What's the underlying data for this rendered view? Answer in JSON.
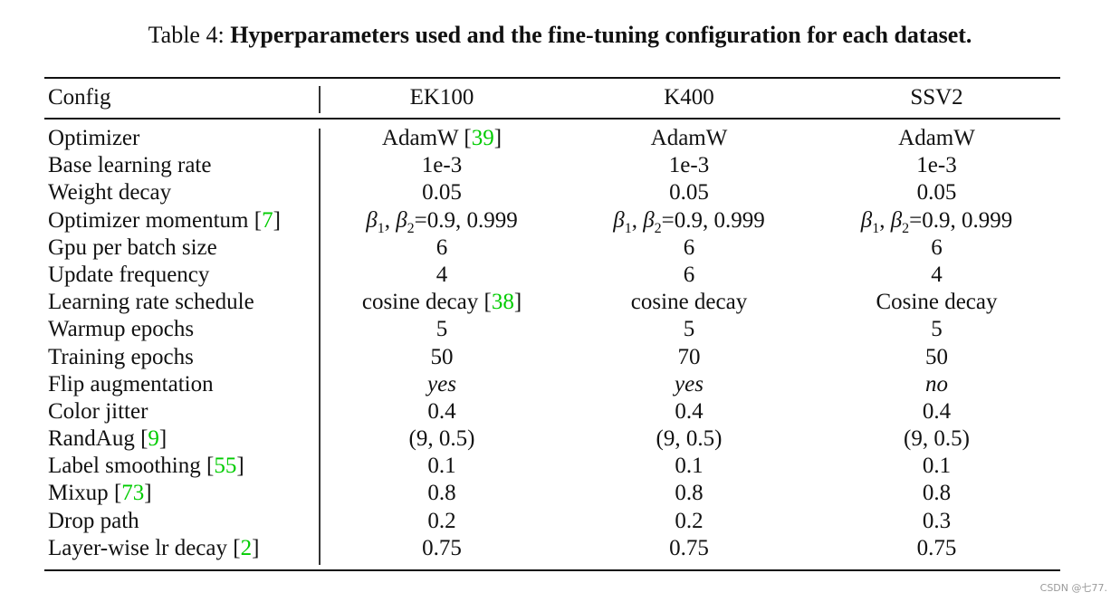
{
  "caption": {
    "label": "Table 4:",
    "title": "Hyperparameters used and the fine-tuning configuration for each dataset."
  },
  "table": {
    "header": [
      "Config",
      "EK100",
      "K400",
      "SSV2"
    ],
    "rows": [
      {
        "config": "Optimizer",
        "ref": null,
        "values": [
          {
            "text": "AdamW",
            "ref": "39"
          },
          {
            "text": "AdamW",
            "ref": null
          },
          {
            "text": "AdamW",
            "ref": null
          }
        ]
      },
      {
        "config": "Base learning rate",
        "ref": null,
        "values": [
          {
            "text": "1e-3",
            "ref": null
          },
          {
            "text": "1e-3",
            "ref": null
          },
          {
            "text": "1e-3",
            "ref": null
          }
        ]
      },
      {
        "config": "Weight decay",
        "ref": null,
        "values": [
          {
            "text": "0.05",
            "ref": null
          },
          {
            "text": "0.05",
            "ref": null
          },
          {
            "text": "0.05",
            "ref": null
          }
        ]
      },
      {
        "config": "Optimizer momentum",
        "ref": "7",
        "values": [
          {
            "text": "β1, β2=0.9, 0.999",
            "ref": null
          },
          {
            "text": "β1, β2=0.9, 0.999",
            "ref": null
          },
          {
            "text": "β1, β2=0.9, 0.999",
            "ref": null
          }
        ]
      },
      {
        "config": "Gpu per batch size",
        "ref": null,
        "values": [
          {
            "text": "6",
            "ref": null
          },
          {
            "text": "6",
            "ref": null
          },
          {
            "text": "6",
            "ref": null
          }
        ]
      },
      {
        "config": "Update frequency",
        "ref": null,
        "values": [
          {
            "text": "4",
            "ref": null
          },
          {
            "text": "6",
            "ref": null
          },
          {
            "text": "4",
            "ref": null
          }
        ]
      },
      {
        "config": "Learning rate schedule",
        "ref": null,
        "values": [
          {
            "text": "cosine decay",
            "ref": "38"
          },
          {
            "text": "cosine decay",
            "ref": null
          },
          {
            "text": "Cosine decay",
            "ref": null
          }
        ]
      },
      {
        "config": "Warmup epochs",
        "ref": null,
        "values": [
          {
            "text": "5",
            "ref": null
          },
          {
            "text": "5",
            "ref": null
          },
          {
            "text": "5",
            "ref": null
          }
        ]
      },
      {
        "config": "Training epochs",
        "ref": null,
        "values": [
          {
            "text": "50",
            "ref": null
          },
          {
            "text": "70",
            "ref": null
          },
          {
            "text": "50",
            "ref": null
          }
        ]
      },
      {
        "config": "Flip augmentation",
        "ref": null,
        "italic": true,
        "values": [
          {
            "text": "yes",
            "ref": null
          },
          {
            "text": "yes",
            "ref": null
          },
          {
            "text": "no",
            "ref": null
          }
        ]
      },
      {
        "config": "Color jitter",
        "ref": null,
        "values": [
          {
            "text": "0.4",
            "ref": null
          },
          {
            "text": "0.4",
            "ref": null
          },
          {
            "text": "0.4",
            "ref": null
          }
        ]
      },
      {
        "config": "RandAug",
        "ref": "9",
        "values": [
          {
            "text": "(9, 0.5)",
            "ref": null
          },
          {
            "text": "(9, 0.5)",
            "ref": null
          },
          {
            "text": "(9, 0.5)",
            "ref": null
          }
        ]
      },
      {
        "config": "Label smoothing",
        "ref": "55",
        "values": [
          {
            "text": "0.1",
            "ref": null
          },
          {
            "text": "0.1",
            "ref": null
          },
          {
            "text": "0.1",
            "ref": null
          }
        ]
      },
      {
        "config": "Mixup",
        "ref": "73",
        "values": [
          {
            "text": "0.8",
            "ref": null
          },
          {
            "text": "0.8",
            "ref": null
          },
          {
            "text": "0.8",
            "ref": null
          }
        ]
      },
      {
        "config": "Drop path",
        "ref": null,
        "values": [
          {
            "text": "0.2",
            "ref": null
          },
          {
            "text": "0.2",
            "ref": null
          },
          {
            "text": "0.3",
            "ref": null
          }
        ]
      },
      {
        "config": "Layer-wise lr decay",
        "ref": "2",
        "values": [
          {
            "text": "0.75",
            "ref": null
          },
          {
            "text": "0.75",
            "ref": null
          },
          {
            "text": "0.75",
            "ref": null
          }
        ]
      }
    ]
  },
  "colors": {
    "reference": "#00cc00",
    "text": "#111111"
  },
  "watermark": "CSDN @七77."
}
